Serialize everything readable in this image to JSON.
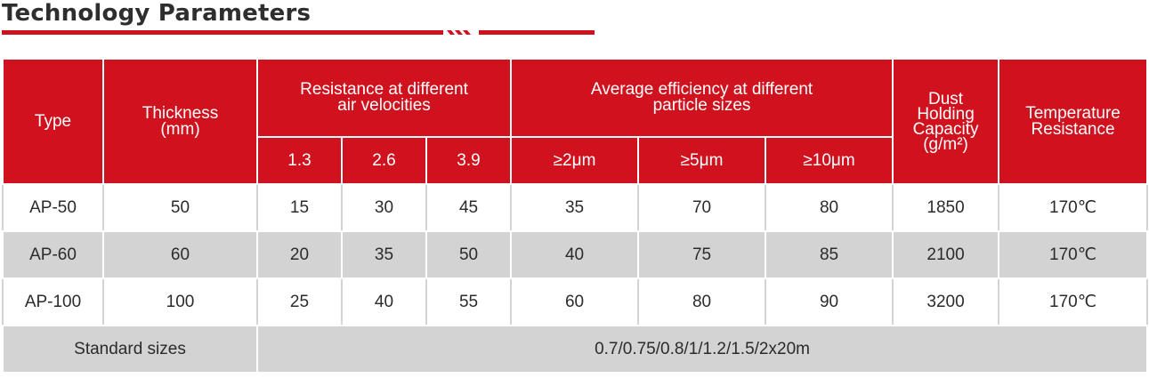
{
  "title": "Technology Parameters",
  "table": {
    "headers": {
      "type": "Type",
      "thickness": "Thickness\n(mm)",
      "resistance_group": "Resistance at different\nair velocities",
      "efficiency_group": "Average efficiency at different\nparticle sizes",
      "dust": "Dust\nHolding\nCapacity\n(g/m²)",
      "temperature": "Temperature\nResistance",
      "velocities": [
        "1.3",
        "2.6",
        "3.9"
      ],
      "particle_sizes": [
        "≥2μm",
        "≥5μm",
        "≥10μm"
      ]
    },
    "rows": [
      {
        "type": "AP-50",
        "thickness": "50",
        "resistance": [
          "15",
          "30",
          "45"
        ],
        "efficiency": [
          "35",
          "70",
          "80"
        ],
        "dust": "1850",
        "temperature": "170℃"
      },
      {
        "type": "AP-60",
        "thickness": "60",
        "resistance": [
          "20",
          "35",
          "50"
        ],
        "efficiency": [
          "40",
          "75",
          "85"
        ],
        "dust": "2100",
        "temperature": "170℃"
      },
      {
        "type": "AP-100",
        "thickness": "100",
        "resistance": [
          "25",
          "40",
          "55"
        ],
        "efficiency": [
          "60",
          "80",
          "90"
        ],
        "dust": "3200",
        "temperature": "170℃"
      }
    ],
    "standard_sizes_label": "Standard sizes",
    "standard_sizes_value": "0.7/0.75/0.8/1/1.2/1.5/2x20m"
  }
}
